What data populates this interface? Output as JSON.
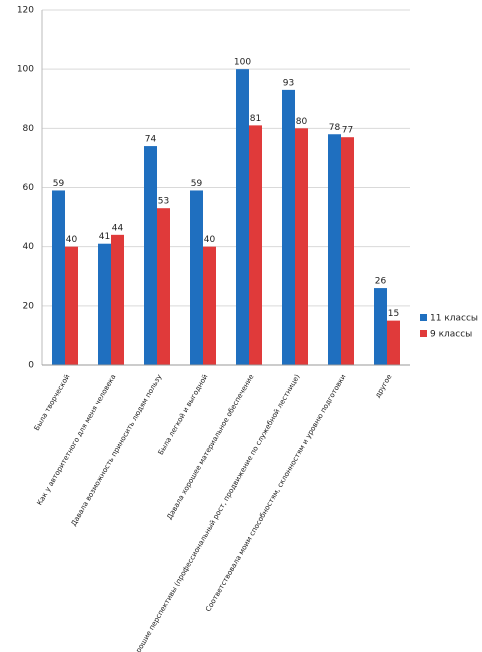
{
  "chart_data": {
    "type": "bar",
    "categories": [
      "Была творческой",
      "Как у авторитетного для меня человека",
      "Давала возможность приносить людям пользу",
      "Была легкой и выгодной",
      "Давала хорошее материальное обеспечение",
      "Имела хорошие перспективы (профессиональный рост, продвижение по служебной лестнице)",
      "Соответствовала моим способностям, склонностям и уровню подготовки",
      "другое"
    ],
    "series": [
      {
        "name": "11 классы",
        "color": "#1f6fbf",
        "values": [
          59,
          41,
          74,
          59,
          100,
          93,
          78,
          26
        ]
      },
      {
        "name": "9 классы",
        "color": "#e03a3a",
        "values": [
          40,
          44,
          53,
          40,
          81,
          80,
          77,
          15
        ]
      }
    ],
    "ylim": [
      0,
      120
    ],
    "yticks": [
      0,
      20,
      40,
      60,
      80,
      100,
      120
    ],
    "grid": true,
    "legend": "right"
  }
}
